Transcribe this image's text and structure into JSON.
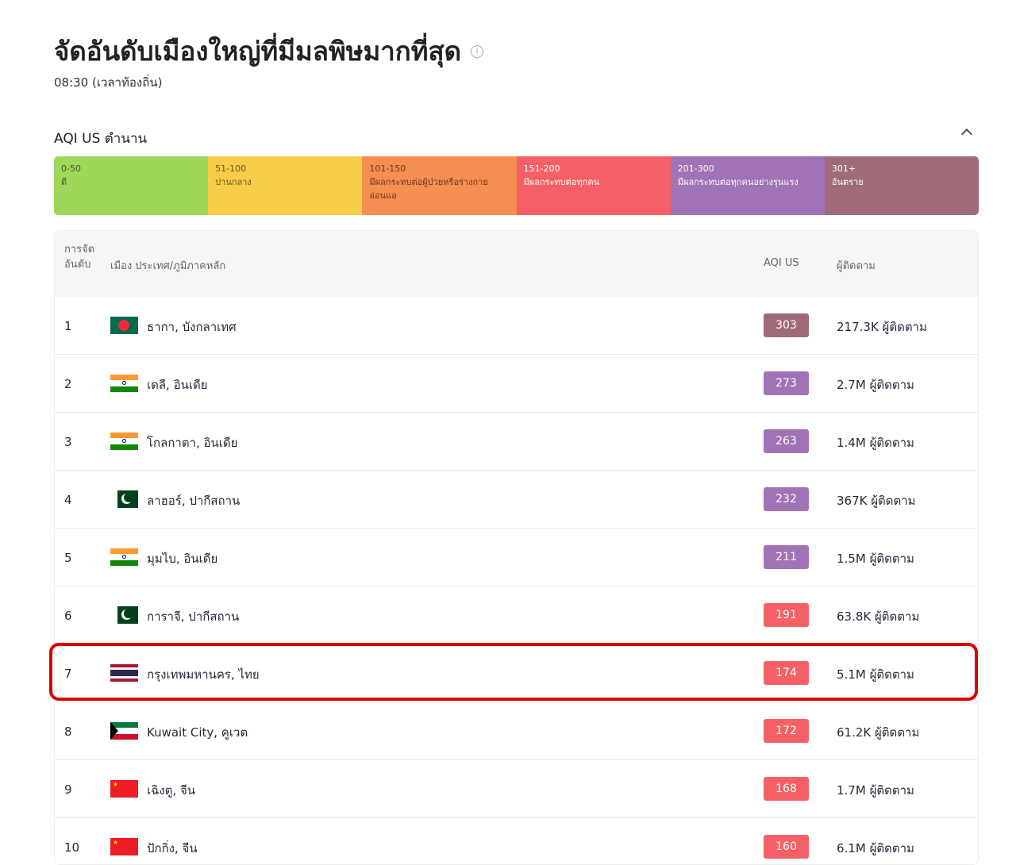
{
  "title": "จัดอันดับเมืองใหญ่ที่มีมลพิษมากที่สุด",
  "subtitle": "08:30 (เวลาท้องถิ่น)",
  "legend": {
    "title": "AQI US ตำนาน",
    "segments": [
      {
        "range": "0-50",
        "label": "ดี",
        "color": "#a0d65a",
        "text": "#44552a"
      },
      {
        "range": "51-100",
        "label": "ปานกลาง",
        "color": "#f8cd4a",
        "text": "#6b5620"
      },
      {
        "range": "101-150",
        "label": "มีผลกระทบต่อผู้ป่วยหรือร่างกายอ่อนแอ",
        "color": "#f68f52",
        "text": "#6b3a1c"
      },
      {
        "range": "151-200",
        "label": "มีผลกระทบต่อทุกคน",
        "color": "#f56066",
        "text": "#ffffff"
      },
      {
        "range": "201-300",
        "label": "มีผลกระทบต่อทุกคนอย่างรุนแรง",
        "color": "#a072b6",
        "text": "#ffffff"
      },
      {
        "range": "301+",
        "label": "อันตราย",
        "color": "#a06a78",
        "text": "#ffffff"
      }
    ]
  },
  "table": {
    "headers": {
      "rank": "การจัดอันดับ",
      "city": "เมือง ประเทศ/ภูมิภาคหลัก",
      "aqi": "AQI US",
      "followers": "ผู้ติดตาม"
    },
    "rows": [
      {
        "rank": "1",
        "flag": "bangladesh",
        "city": "ธากา, บังกลาเทศ",
        "aqi": "303",
        "color": "#a06a78",
        "followers": "217.3K ผู้ติดตาม"
      },
      {
        "rank": "2",
        "flag": "india",
        "city": "เดลี, อินเดีย",
        "aqi": "273",
        "color": "#a072b6",
        "followers": "2.7M ผู้ติดตาม"
      },
      {
        "rank": "3",
        "flag": "india",
        "city": "โกลกาตา, อินเดีย",
        "aqi": "263",
        "color": "#a072b6",
        "followers": "1.4M ผู้ติดตาม"
      },
      {
        "rank": "4",
        "flag": "pakistan",
        "city": "ลาฮอร์, ปากีสถาน",
        "aqi": "232",
        "color": "#a072b6",
        "followers": "367K ผู้ติดตาม"
      },
      {
        "rank": "5",
        "flag": "india",
        "city": "มุมไบ, อินเดีย",
        "aqi": "211",
        "color": "#a072b6",
        "followers": "1.5M ผู้ติดตาม"
      },
      {
        "rank": "6",
        "flag": "pakistan",
        "city": "การาจี, ปากีสถาน",
        "aqi": "191",
        "color": "#f56066",
        "followers": "63.8K ผู้ติดตาม"
      },
      {
        "rank": "7",
        "flag": "thailand",
        "city": "กรุงเทพมหานคร, ไทย",
        "aqi": "174",
        "color": "#f56066",
        "followers": "5.1M ผู้ติดตาม"
      },
      {
        "rank": "8",
        "flag": "kuwait",
        "city": "Kuwait City, คูเวต",
        "aqi": "172",
        "color": "#f56066",
        "followers": "61.2K ผู้ติดตาม"
      },
      {
        "rank": "9",
        "flag": "china",
        "city": "เฉิงตู, จีน",
        "aqi": "168",
        "color": "#f56066",
        "followers": "1.7M ผู้ติดตาม"
      },
      {
        "rank": "10",
        "flag": "china",
        "city": "ปักกิ่ง, จีน",
        "aqi": "160",
        "color": "#f56066",
        "followers": "6.1M ผู้ติดตาม"
      }
    ]
  }
}
